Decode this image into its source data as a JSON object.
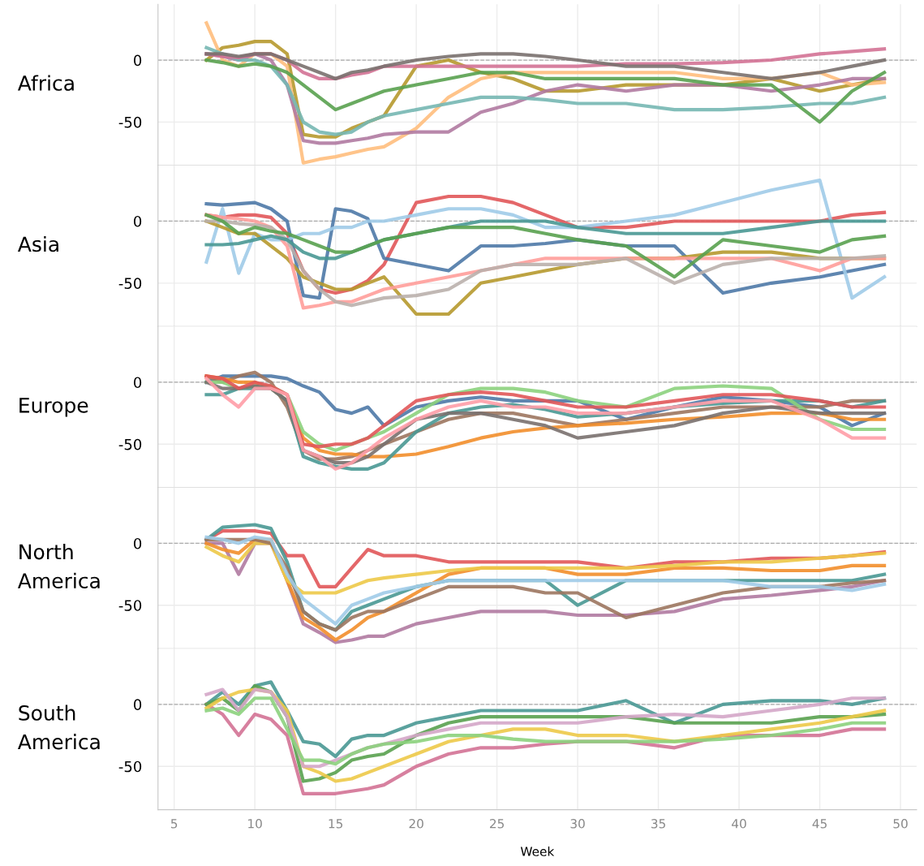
{
  "chart_data": [
    {
      "type": "line",
      "ylabel": "Africa",
      "xlim": [
        4,
        51
      ],
      "ylim": [
        -85,
        45
      ],
      "yticks": [
        0,
        -50
      ],
      "xticks": [
        5,
        10,
        15,
        20,
        25,
        30,
        35,
        40,
        45,
        50
      ],
      "tick_labels": "y",
      "grid": true,
      "line_style": "solid",
      "ref_lines": [
        {
          "axis": "y",
          "value": 0,
          "color": "#aaaaaa",
          "line_style": "dashed"
        }
      ],
      "x": [
        7,
        8,
        9,
        10,
        11,
        12,
        13,
        14,
        15,
        16,
        17,
        18,
        20,
        22,
        24,
        26,
        28,
        30,
        33,
        36,
        39,
        42,
        45,
        47,
        49
      ],
      "series": [
        {
          "color": "#b6992d",
          "values": [
            0,
            10,
            12,
            15,
            15,
            5,
            -60,
            -62,
            -62,
            -55,
            -50,
            -45,
            -5,
            0,
            -10,
            -15,
            -25,
            -25,
            -20,
            -20,
            -20,
            -15,
            -25,
            -20,
            -15
          ]
        },
        {
          "color": "#ffbe7d",
          "values": [
            30,
            0,
            -5,
            5,
            5,
            -5,
            -83,
            -80,
            -78,
            -75,
            -72,
            -70,
            -55,
            -30,
            -15,
            -10,
            -10,
            -10,
            -10,
            -10,
            -15,
            -15,
            -10,
            -20,
            -18
          ]
        },
        {
          "color": "#b07aa1",
          "values": [
            5,
            3,
            0,
            5,
            0,
            -20,
            -65,
            -67,
            -67,
            -65,
            -63,
            -60,
            -58,
            -58,
            -42,
            -35,
            -25,
            -20,
            -25,
            -20,
            -20,
            -25,
            -20,
            -15,
            -15
          ]
        },
        {
          "color": "#76b7b2",
          "values": [
            10,
            5,
            0,
            0,
            -5,
            -20,
            -50,
            -58,
            -60,
            -58,
            -50,
            -45,
            -40,
            -35,
            -30,
            -30,
            -32,
            -35,
            -35,
            -40,
            -40,
            -38,
            -35,
            -35,
            -30
          ]
        },
        {
          "color": "#d37295",
          "values": [
            5,
            3,
            2,
            5,
            5,
            0,
            -10,
            -15,
            -15,
            -12,
            -10,
            -5,
            -5,
            -5,
            -5,
            -5,
            -5,
            -5,
            -3,
            -3,
            -2,
            0,
            5,
            7,
            9
          ]
        },
        {
          "color": "#59a14f",
          "values": [
            0,
            -2,
            -5,
            -3,
            -5,
            -10,
            -20,
            -30,
            -40,
            -35,
            -30,
            -25,
            -20,
            -15,
            -10,
            -10,
            -15,
            -15,
            -15,
            -15,
            -20,
            -20,
            -50,
            -25,
            -10
          ]
        },
        {
          "color": "#79706e",
          "values": [
            5,
            5,
            3,
            5,
            5,
            0,
            -5,
            -10,
            -15,
            -10,
            -8,
            -5,
            0,
            3,
            5,
            5,
            3,
            0,
            -5,
            -5,
            -10,
            -15,
            -10,
            -5,
            0
          ]
        }
      ]
    },
    {
      "type": "line",
      "ylabel": "Asia",
      "xlim": [
        4,
        51
      ],
      "ylim": [
        -85,
        45
      ],
      "yticks": [
        0,
        -50
      ],
      "xticks": [
        5,
        10,
        15,
        20,
        25,
        30,
        35,
        40,
        45,
        50
      ],
      "tick_labels": "y",
      "grid": true,
      "line_style": "solid",
      "ref_lines": [
        {
          "axis": "y",
          "value": 0,
          "color": "#aaaaaa",
          "line_style": "dashed"
        }
      ],
      "x": [
        7,
        8,
        9,
        10,
        11,
        12,
        13,
        14,
        15,
        16,
        17,
        18,
        20,
        22,
        24,
        26,
        28,
        30,
        33,
        36,
        39,
        42,
        45,
        47,
        49
      ],
      "series": [
        {
          "color": "#e15759",
          "values": [
            5,
            3,
            5,
            5,
            3,
            -10,
            -40,
            -55,
            -58,
            -55,
            -48,
            -35,
            15,
            20,
            20,
            15,
            5,
            -5,
            -5,
            0,
            0,
            0,
            0,
            5,
            7
          ]
        },
        {
          "color": "#4e79a7",
          "values": [
            14,
            13,
            14,
            15,
            10,
            0,
            -60,
            -62,
            10,
            8,
            2,
            -30,
            -35,
            -40,
            -20,
            -20,
            -18,
            -15,
            -20,
            -20,
            -58,
            -50,
            -45,
            -40,
            -35
          ]
        },
        {
          "color": "#a0cbe8",
          "values": [
            -33,
            10,
            -42,
            -10,
            -15,
            -15,
            -10,
            -10,
            -5,
            -5,
            0,
            0,
            5,
            10,
            10,
            5,
            -5,
            -5,
            0,
            5,
            15,
            25,
            33,
            -62,
            -45
          ]
        },
        {
          "color": "#b6992d",
          "values": [
            0,
            -5,
            -10,
            -10,
            -20,
            -30,
            -45,
            -50,
            -55,
            -55,
            -50,
            -45,
            -75,
            -75,
            -50,
            -45,
            -40,
            -35,
            -30,
            -30,
            -25,
            -25,
            -30,
            -30,
            -30
          ]
        },
        {
          "color": "#ff9d9a",
          "values": [
            5,
            3,
            2,
            0,
            -5,
            -20,
            -70,
            -68,
            -65,
            -65,
            -60,
            -55,
            -50,
            -45,
            -40,
            -35,
            -30,
            -30,
            -30,
            -30,
            -30,
            -30,
            -40,
            -30,
            -30
          ]
        },
        {
          "color": "#bab0ac",
          "values": [
            0,
            0,
            -2,
            -3,
            -5,
            -15,
            -40,
            -55,
            -65,
            -68,
            -65,
            -62,
            -60,
            -55,
            -40,
            -35,
            -35,
            -35,
            -30,
            -50,
            -35,
            -30,
            -30,
            -30,
            -28
          ]
        },
        {
          "color": "#499894",
          "values": [
            -19,
            -19,
            -18,
            -15,
            -12,
            -15,
            -25,
            -30,
            -30,
            -25,
            -20,
            -15,
            -10,
            -5,
            0,
            0,
            0,
            -5,
            -10,
            -10,
            -10,
            -5,
            0,
            0,
            0
          ]
        },
        {
          "color": "#59a14f",
          "values": [
            5,
            0,
            -10,
            -5,
            -8,
            -10,
            -15,
            -20,
            -25,
            -25,
            -20,
            -15,
            -10,
            -5,
            -5,
            -5,
            -10,
            -15,
            -20,
            -45,
            -15,
            -20,
            -25,
            -15,
            -12
          ]
        }
      ]
    },
    {
      "type": "line",
      "ylabel": "Europe",
      "xlim": [
        4,
        51
      ],
      "ylim": [
        -85,
        45
      ],
      "yticks": [
        0,
        -50
      ],
      "xticks": [
        5,
        10,
        15,
        20,
        25,
        30,
        35,
        40,
        45,
        50
      ],
      "tick_labels": "y",
      "grid": true,
      "line_style": "solid",
      "ref_lines": [
        {
          "axis": "y",
          "value": 0,
          "color": "#aaaaaa",
          "line_style": "dashed"
        }
      ],
      "x": [
        7,
        8,
        9,
        10,
        11,
        12,
        13,
        14,
        15,
        16,
        17,
        18,
        20,
        22,
        24,
        26,
        28,
        30,
        33,
        36,
        39,
        42,
        45,
        47,
        49
      ],
      "series": [
        {
          "color": "#4e79a7",
          "values": [
            0,
            5,
            5,
            5,
            5,
            3,
            -3,
            -8,
            -22,
            -25,
            -20,
            -35,
            -20,
            -15,
            -12,
            -15,
            -15,
            -15,
            -30,
            -20,
            -12,
            -15,
            -20,
            -35,
            -25
          ]
        },
        {
          "color": "#9c755f",
          "values": [
            5,
            0,
            5,
            8,
            0,
            -20,
            -55,
            -62,
            -62,
            -60,
            -55,
            -50,
            -40,
            -30,
            -25,
            -25,
            -30,
            -35,
            -30,
            -25,
            -20,
            -20,
            -20,
            -15,
            -15
          ]
        },
        {
          "color": "#f28e2b",
          "values": [
            5,
            3,
            0,
            0,
            -5,
            -15,
            -45,
            -55,
            -58,
            -58,
            -60,
            -60,
            -58,
            -52,
            -45,
            -40,
            -37,
            -35,
            -33,
            -30,
            -28,
            -25,
            -25,
            -30,
            -30
          ]
        },
        {
          "color": "#499894",
          "values": [
            -10,
            -10,
            -5,
            -5,
            -5,
            -15,
            -60,
            -65,
            -68,
            -70,
            -70,
            -65,
            -40,
            -25,
            -20,
            -18,
            -22,
            -28,
            -25,
            -20,
            -17,
            -15,
            -15,
            -20,
            -15
          ]
        },
        {
          "color": "#8cd17d",
          "values": [
            0,
            0,
            -5,
            -3,
            -3,
            -10,
            -40,
            -50,
            -55,
            -50,
            -45,
            -40,
            -25,
            -10,
            -5,
            -5,
            -8,
            -15,
            -20,
            -5,
            -3,
            -5,
            -30,
            -38,
            -38
          ]
        },
        {
          "color": "#79706e",
          "values": [
            0,
            -5,
            -5,
            -3,
            -5,
            -15,
            -55,
            -60,
            -65,
            -65,
            -60,
            -50,
            -30,
            -25,
            -25,
            -30,
            -35,
            -45,
            -40,
            -35,
            -25,
            -20,
            -25,
            -25,
            -25
          ]
        },
        {
          "color": "#e15759",
          "values": [
            5,
            3,
            -5,
            0,
            -3,
            -10,
            -50,
            -52,
            -50,
            -50,
            -45,
            -35,
            -15,
            -10,
            -8,
            -10,
            -15,
            -20,
            -20,
            -15,
            -10,
            -10,
            -15,
            -20,
            -20
          ]
        },
        {
          "color": "#ff9da7",
          "values": [
            3,
            -10,
            -20,
            -5,
            -5,
            -10,
            -55,
            -60,
            -70,
            -65,
            -55,
            -45,
            -30,
            -20,
            -15,
            -20,
            -20,
            -25,
            -25,
            -20,
            -15,
            -15,
            -30,
            -45,
            -45
          ]
        }
      ]
    },
    {
      "type": "line",
      "ylabel": "North\nAmerica",
      "xlim": [
        4,
        51
      ],
      "ylim": [
        -85,
        45
      ],
      "yticks": [
        0,
        -50
      ],
      "xticks": [
        5,
        10,
        15,
        20,
        25,
        30,
        35,
        40,
        45,
        50
      ],
      "tick_labels": "y",
      "grid": true,
      "line_style": "solid",
      "ref_lines": [
        {
          "axis": "y",
          "value": 0,
          "color": "#aaaaaa",
          "line_style": "dashed"
        }
      ],
      "x": [
        7,
        8,
        9,
        10,
        11,
        12,
        13,
        14,
        15,
        16,
        17,
        18,
        20,
        22,
        24,
        26,
        28,
        30,
        33,
        36,
        39,
        42,
        45,
        47,
        49
      ],
      "series": [
        {
          "color": "#e15759",
          "values": [
            3,
            10,
            10,
            10,
            8,
            -10,
            -10,
            -35,
            -35,
            -20,
            -5,
            -10,
            -10,
            -15,
            -15,
            -15,
            -15,
            -15,
            -20,
            -15,
            -15,
            -12,
            -12,
            -10,
            -7
          ]
        },
        {
          "color": "#499894",
          "values": [
            3,
            13,
            14,
            15,
            12,
            -15,
            -55,
            -65,
            -70,
            -55,
            -50,
            -45,
            -35,
            -30,
            -30,
            -30,
            -30,
            -50,
            -30,
            -30,
            -30,
            -30,
            -30,
            -30,
            -25
          ]
        },
        {
          "color": "#b07aa1",
          "values": [
            0,
            0,
            -25,
            0,
            0,
            -30,
            -65,
            -72,
            -80,
            -78,
            -75,
            -75,
            -65,
            -60,
            -55,
            -55,
            -55,
            -58,
            -58,
            -55,
            -45,
            -42,
            -38,
            -35,
            -30
          ]
        },
        {
          "color": "#f28e2b",
          "values": [
            0,
            -5,
            -8,
            3,
            3,
            -30,
            -60,
            -68,
            -78,
            -70,
            -60,
            -55,
            -40,
            -25,
            -20,
            -20,
            -20,
            -25,
            -25,
            -20,
            -20,
            -22,
            -22,
            -18,
            -18
          ]
        },
        {
          "color": "#edc948",
          "values": [
            -3,
            -10,
            -15,
            0,
            0,
            -30,
            -40,
            -40,
            -40,
            -35,
            -30,
            -28,
            -25,
            -22,
            -20,
            -20,
            -20,
            -20,
            -20,
            -18,
            -15,
            -15,
            -12,
            -10,
            -8
          ]
        },
        {
          "color": "#9c755f",
          "values": [
            3,
            3,
            3,
            3,
            0,
            -20,
            -55,
            -65,
            -70,
            -60,
            -55,
            -55,
            -45,
            -35,
            -35,
            -35,
            -40,
            -40,
            -60,
            -50,
            -40,
            -35,
            -35,
            -32,
            -30
          ]
        },
        {
          "color": "#a0cbe8",
          "values": [
            5,
            3,
            0,
            5,
            3,
            -25,
            -45,
            -55,
            -65,
            -50,
            -45,
            -40,
            -35,
            -30,
            -30,
            -30,
            -30,
            -30,
            -30,
            -30,
            -30,
            -35,
            -35,
            -38,
            -33
          ]
        }
      ]
    },
    {
      "type": "line",
      "ylabel": "South\nAmerica",
      "xlabel": "Week",
      "xlim": [
        4,
        51
      ],
      "ylim": [
        -85,
        45
      ],
      "yticks": [
        0,
        -50
      ],
      "xticks": [
        5,
        10,
        15,
        20,
        25,
        30,
        35,
        40,
        45,
        50
      ],
      "grid": true,
      "line_style": "solid",
      "ref_lines": [
        {
          "axis": "y",
          "value": 0,
          "color": "#aaaaaa",
          "line_style": "dashed"
        }
      ],
      "x": [
        7,
        8,
        9,
        10,
        11,
        12,
        13,
        14,
        15,
        16,
        17,
        18,
        20,
        22,
        24,
        26,
        28,
        30,
        33,
        36,
        39,
        42,
        45,
        47,
        49
      ],
      "series": [
        {
          "color": "#499894",
          "values": [
            0,
            10,
            0,
            15,
            18,
            -5,
            -30,
            -32,
            -42,
            -28,
            -25,
            -25,
            -15,
            -10,
            -5,
            -5,
            -5,
            -5,
            3,
            -15,
            0,
            3,
            3,
            0,
            5
          ]
        },
        {
          "color": "#d37295",
          "values": [
            0,
            -8,
            -25,
            -8,
            -12,
            -25,
            -72,
            -72,
            -72,
            -70,
            -68,
            -65,
            -50,
            -40,
            -35,
            -35,
            -32,
            -30,
            -30,
            -35,
            -25,
            -25,
            -25,
            -20,
            -20
          ]
        },
        {
          "color": "#59a14f",
          "values": [
            0,
            5,
            -5,
            15,
            10,
            -10,
            -62,
            -60,
            -55,
            -45,
            -42,
            -40,
            -25,
            -15,
            -10,
            -10,
            -10,
            -10,
            -10,
            -15,
            -15,
            -15,
            -10,
            -10,
            -8
          ]
        },
        {
          "color": "#edc948",
          "values": [
            -3,
            5,
            10,
            12,
            10,
            -5,
            -50,
            -55,
            -62,
            -60,
            -55,
            -50,
            -40,
            -30,
            -25,
            -20,
            -20,
            -25,
            -25,
            -30,
            -25,
            -20,
            -15,
            -10,
            -5
          ]
        },
        {
          "color": "#d4a6c8",
          "values": [
            8,
            12,
            -5,
            12,
            10,
            -10,
            -50,
            -50,
            -45,
            -40,
            -35,
            -32,
            -25,
            -20,
            -15,
            -15,
            -15,
            -15,
            -10,
            -8,
            -10,
            -5,
            0,
            5,
            5
          ]
        },
        {
          "color": "#8cd17d",
          "values": [
            -5,
            -3,
            -8,
            5,
            5,
            -20,
            -45,
            -45,
            -48,
            -40,
            -35,
            -32,
            -30,
            -25,
            -25,
            -28,
            -30,
            -30,
            -30,
            -30,
            -28,
            -25,
            -20,
            -15,
            -15
          ]
        }
      ]
    }
  ]
}
